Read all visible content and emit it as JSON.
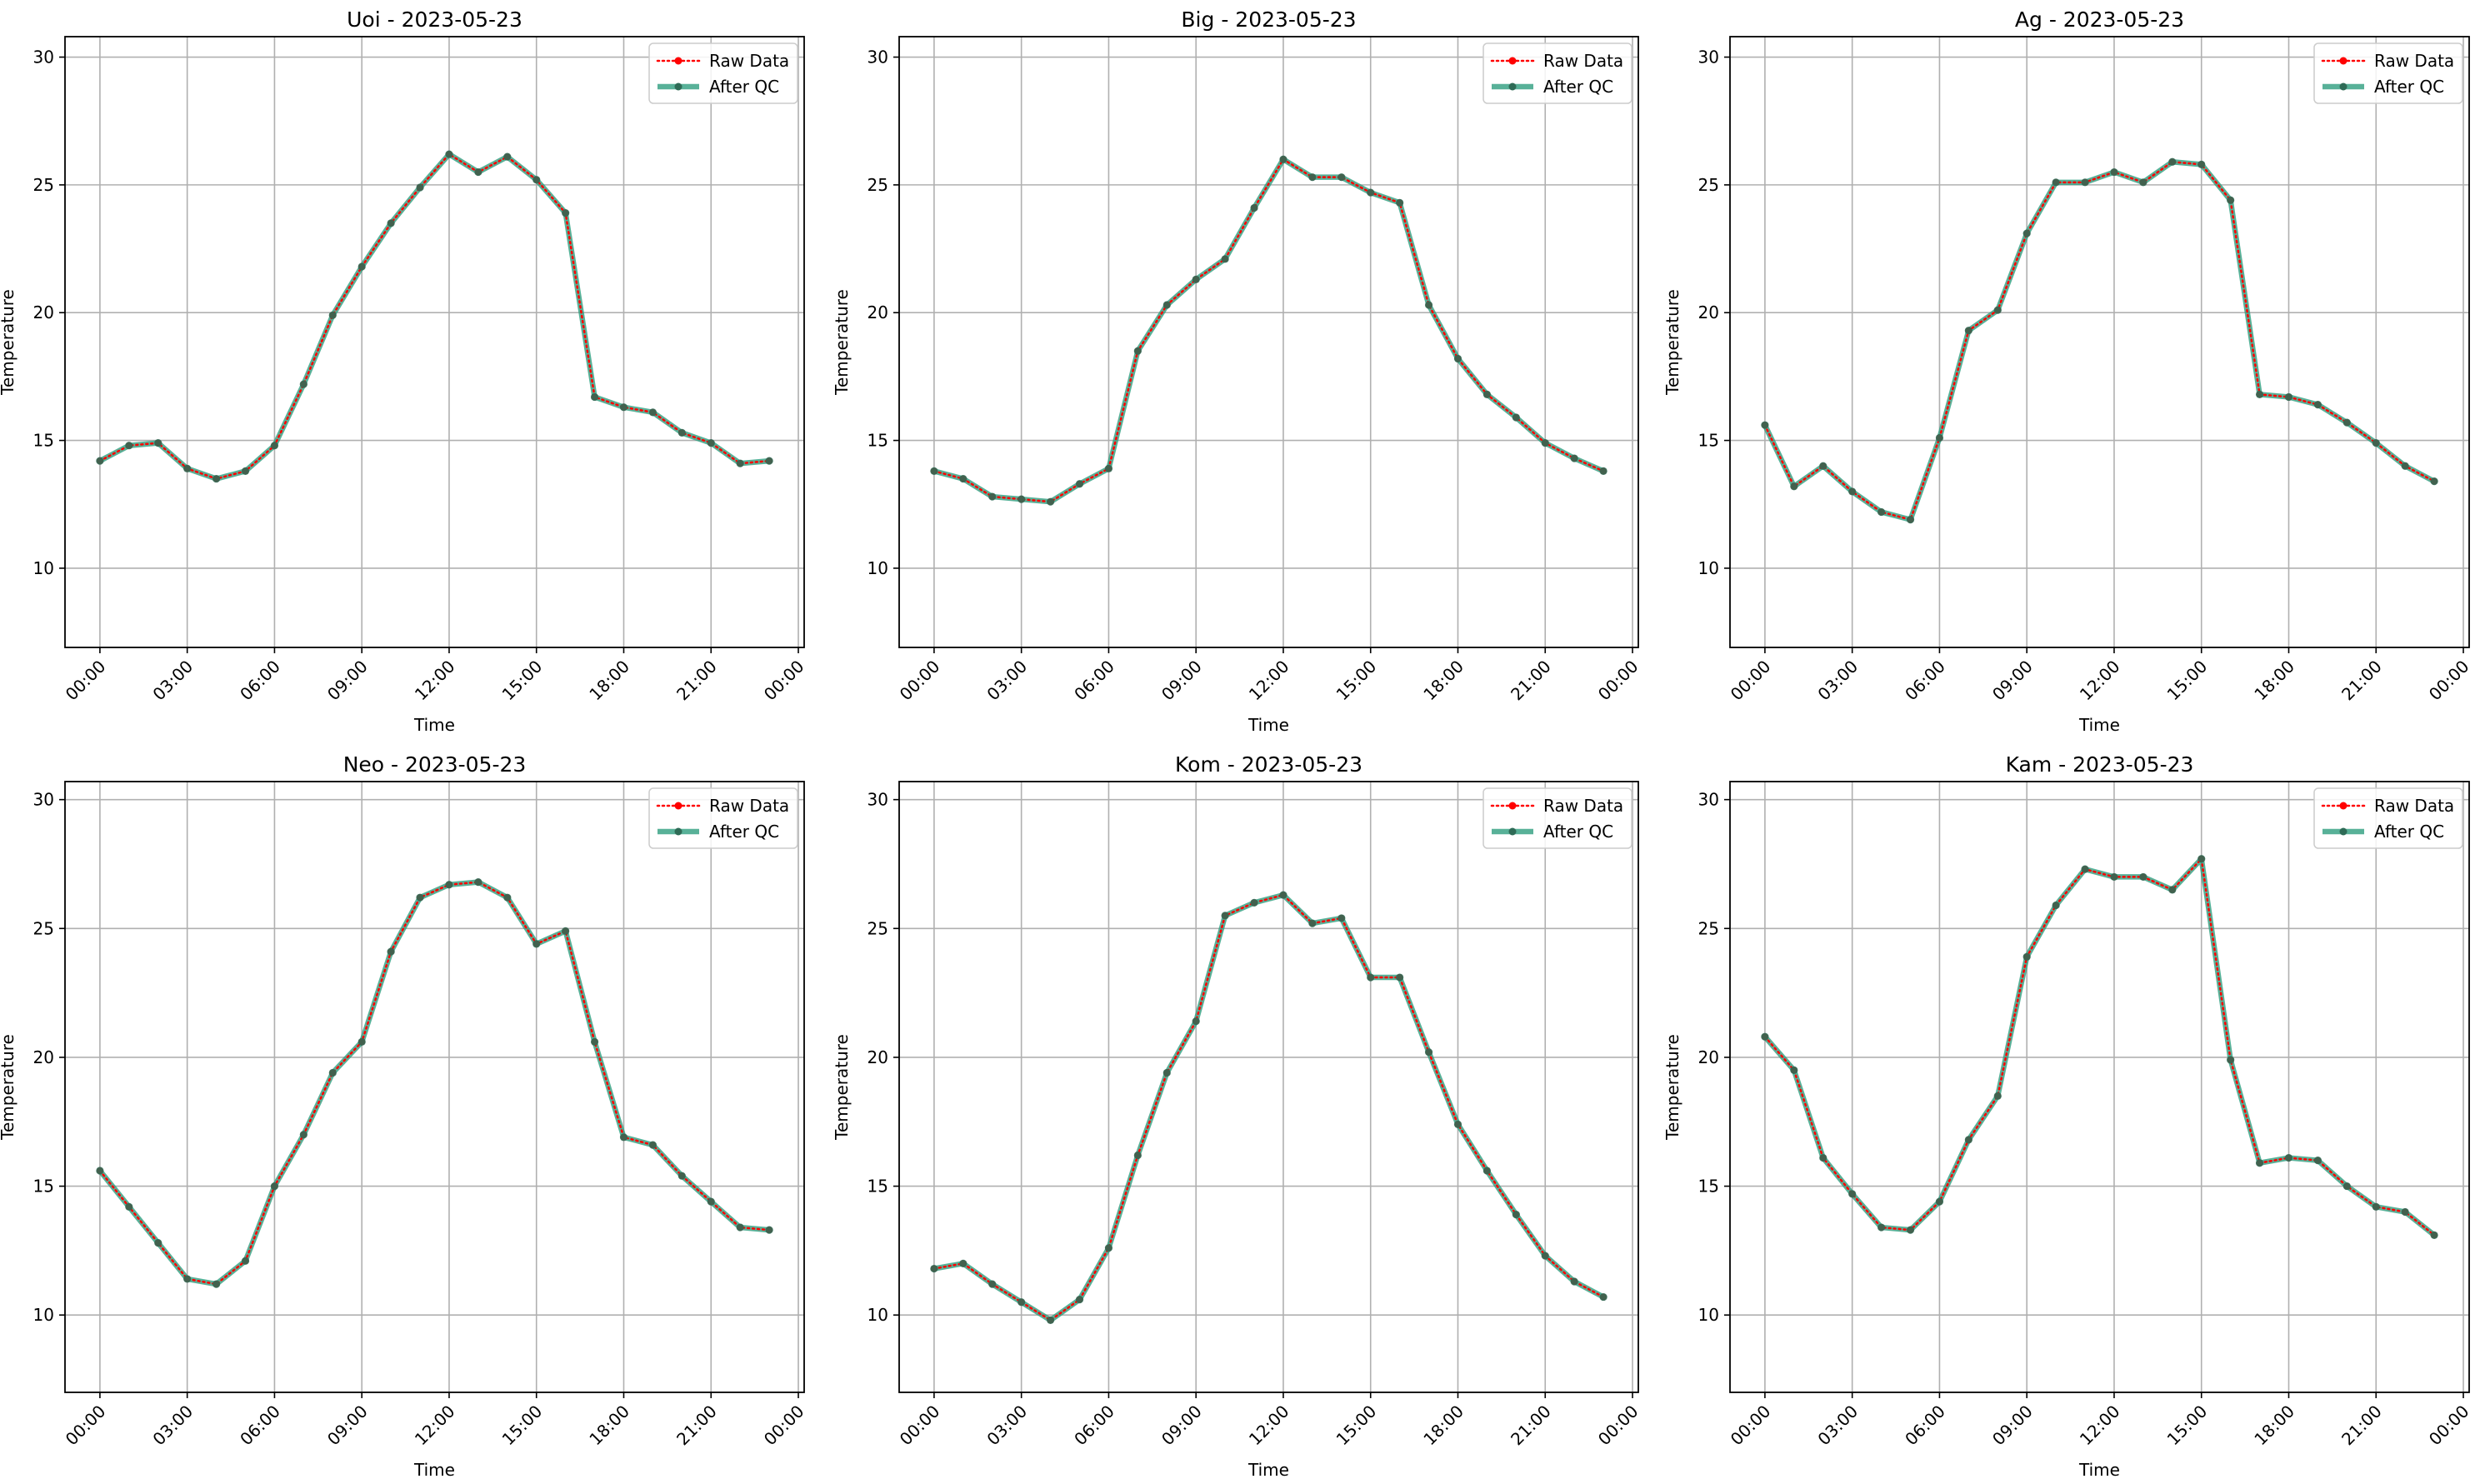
{
  "figure": {
    "facecolor": "#ffffff",
    "raw_color": "#ff0000",
    "qc_color": "#2e9e7e",
    "qc_marker_color": "#2e6b56",
    "grid_color": "#b0b0b0"
  },
  "chart_data": [
    {
      "type": "line",
      "title": "Uoi - 2023-05-23",
      "xlabel": "Time",
      "ylabel": "Temperature",
      "x_ticks": [
        "00:00",
        "03:00",
        "06:00",
        "09:00",
        "12:00",
        "15:00",
        "18:00",
        "21:00",
        "00:00"
      ],
      "y_ticks": [
        10,
        15,
        20,
        25,
        30
      ],
      "xlim_hours": [
        -1.2,
        24.2
      ],
      "ylim": [
        6.9,
        30.8
      ],
      "grid": true,
      "legend_position": "top-right",
      "x_hours": [
        0,
        1,
        2,
        3,
        4,
        5,
        6,
        7,
        8,
        9,
        10,
        11,
        12,
        13,
        14,
        15,
        16,
        17,
        18,
        19,
        20,
        21,
        22,
        23
      ],
      "series": [
        {
          "name": "Raw Data",
          "values": [
            14.2,
            14.8,
            14.9,
            13.9,
            13.5,
            13.8,
            14.8,
            17.2,
            19.9,
            21.8,
            23.5,
            24.9,
            26.2,
            25.5,
            26.1,
            25.2,
            23.9,
            16.7,
            16.3,
            16.1,
            15.3,
            14.9,
            14.1,
            14.2
          ]
        },
        {
          "name": "After QC",
          "values": [
            14.2,
            14.8,
            14.9,
            13.9,
            13.5,
            13.8,
            14.8,
            17.2,
            19.9,
            21.8,
            23.5,
            24.9,
            26.2,
            25.5,
            26.1,
            25.2,
            23.9,
            16.7,
            16.3,
            16.1,
            15.3,
            14.9,
            14.1,
            14.2
          ]
        }
      ]
    },
    {
      "type": "line",
      "title": "Big - 2023-05-23",
      "xlabel": "Time",
      "ylabel": "Temperature",
      "x_ticks": [
        "00:00",
        "03:00",
        "06:00",
        "09:00",
        "12:00",
        "15:00",
        "18:00",
        "21:00",
        "00:00"
      ],
      "y_ticks": [
        10,
        15,
        20,
        25,
        30
      ],
      "xlim_hours": [
        -1.2,
        24.2
      ],
      "ylim": [
        6.9,
        30.8
      ],
      "grid": true,
      "legend_position": "top-right",
      "x_hours": [
        0,
        1,
        2,
        3,
        4,
        5,
        6,
        7,
        8,
        9,
        10,
        11,
        12,
        13,
        14,
        15,
        16,
        17,
        18,
        19,
        20,
        21,
        22,
        23
      ],
      "series": [
        {
          "name": "Raw Data",
          "values": [
            13.8,
            13.5,
            12.8,
            12.7,
            12.6,
            13.3,
            13.9,
            18.5,
            20.3,
            21.3,
            22.1,
            24.1,
            26.0,
            25.3,
            25.3,
            24.7,
            24.3,
            20.3,
            18.2,
            16.8,
            15.9,
            14.9,
            14.3,
            13.8
          ]
        },
        {
          "name": "After QC",
          "values": [
            13.8,
            13.5,
            12.8,
            12.7,
            12.6,
            13.3,
            13.9,
            18.5,
            20.3,
            21.3,
            22.1,
            24.1,
            26.0,
            25.3,
            25.3,
            24.7,
            24.3,
            20.3,
            18.2,
            16.8,
            15.9,
            14.9,
            14.3,
            13.8
          ]
        }
      ]
    },
    {
      "type": "line",
      "title": "Ag - 2023-05-23",
      "xlabel": "Time",
      "ylabel": "Temperature",
      "x_ticks": [
        "00:00",
        "03:00",
        "06:00",
        "09:00",
        "12:00",
        "15:00",
        "18:00",
        "21:00",
        "00:00"
      ],
      "y_ticks": [
        10,
        15,
        20,
        25,
        30
      ],
      "xlim_hours": [
        -1.2,
        24.2
      ],
      "ylim": [
        6.9,
        30.8
      ],
      "grid": true,
      "legend_position": "top-right",
      "x_hours": [
        0,
        1,
        2,
        3,
        4,
        5,
        6,
        7,
        8,
        9,
        10,
        11,
        12,
        13,
        14,
        15,
        16,
        17,
        18,
        19,
        20,
        21,
        22,
        23
      ],
      "series": [
        {
          "name": "Raw Data",
          "values": [
            15.6,
            13.2,
            14.0,
            13.0,
            12.2,
            11.9,
            15.1,
            19.3,
            20.1,
            23.1,
            25.1,
            25.1,
            25.5,
            25.1,
            25.9,
            25.8,
            24.4,
            16.8,
            16.7,
            16.4,
            15.7,
            14.9,
            14.0,
            13.4
          ]
        },
        {
          "name": "After QC",
          "values": [
            15.6,
            13.2,
            14.0,
            13.0,
            12.2,
            11.9,
            15.1,
            19.3,
            20.1,
            23.1,
            25.1,
            25.1,
            25.5,
            25.1,
            25.9,
            25.8,
            24.4,
            16.8,
            16.7,
            16.4,
            15.7,
            14.9,
            14.0,
            13.4
          ]
        }
      ]
    },
    {
      "type": "line",
      "title": "Neo - 2023-05-23",
      "xlabel": "Time",
      "ylabel": "Temperature",
      "x_ticks": [
        "00:00",
        "03:00",
        "06:00",
        "09:00",
        "12:00",
        "15:00",
        "18:00",
        "21:00",
        "00:00"
      ],
      "y_ticks": [
        10,
        15,
        20,
        25,
        30
      ],
      "xlim_hours": [
        -1.2,
        24.2
      ],
      "ylim": [
        7.0,
        30.7
      ],
      "grid": true,
      "legend_position": "top-right",
      "x_hours": [
        0,
        1,
        2,
        3,
        4,
        5,
        6,
        7,
        8,
        9,
        10,
        11,
        12,
        13,
        14,
        15,
        16,
        17,
        18,
        19,
        20,
        21,
        22,
        23
      ],
      "series": [
        {
          "name": "Raw Data",
          "values": [
            15.6,
            14.2,
            12.8,
            11.4,
            11.2,
            12.1,
            15.0,
            17.0,
            19.4,
            20.6,
            24.1,
            26.2,
            26.7,
            26.8,
            26.2,
            24.4,
            24.9,
            20.6,
            16.9,
            16.6,
            15.4,
            14.4,
            13.4,
            13.3
          ]
        },
        {
          "name": "After QC",
          "values": [
            15.6,
            14.2,
            12.8,
            11.4,
            11.2,
            12.1,
            15.0,
            17.0,
            19.4,
            20.6,
            24.1,
            26.2,
            26.7,
            26.8,
            26.2,
            24.4,
            24.9,
            20.6,
            16.9,
            16.6,
            15.4,
            14.4,
            13.4,
            13.3
          ]
        }
      ]
    },
    {
      "type": "line",
      "title": "Kom - 2023-05-23",
      "xlabel": "Time",
      "ylabel": "Temperature",
      "x_ticks": [
        "00:00",
        "03:00",
        "06:00",
        "09:00",
        "12:00",
        "15:00",
        "18:00",
        "21:00",
        "00:00"
      ],
      "y_ticks": [
        10,
        15,
        20,
        25,
        30
      ],
      "xlim_hours": [
        -1.2,
        24.2
      ],
      "ylim": [
        7.0,
        30.7
      ],
      "grid": true,
      "legend_position": "top-right",
      "x_hours": [
        0,
        1,
        2,
        3,
        4,
        5,
        6,
        7,
        8,
        9,
        10,
        11,
        12,
        13,
        14,
        15,
        16,
        17,
        18,
        19,
        20,
        21,
        22,
        23
      ],
      "series": [
        {
          "name": "Raw Data",
          "values": [
            11.8,
            12.0,
            11.2,
            10.5,
            9.8,
            10.6,
            12.6,
            16.2,
            19.4,
            21.4,
            25.5,
            26.0,
            26.3,
            25.2,
            25.4,
            23.1,
            23.1,
            20.2,
            17.4,
            15.6,
            13.9,
            12.3,
            11.3,
            10.7
          ]
        },
        {
          "name": "After QC",
          "values": [
            11.8,
            12.0,
            11.2,
            10.5,
            9.8,
            10.6,
            12.6,
            16.2,
            19.4,
            21.4,
            25.5,
            26.0,
            26.3,
            25.2,
            25.4,
            23.1,
            23.1,
            20.2,
            17.4,
            15.6,
            13.9,
            12.3,
            11.3,
            10.7
          ]
        }
      ]
    },
    {
      "type": "line",
      "title": "Kam - 2023-05-23",
      "xlabel": "Time",
      "ylabel": "Temperature",
      "x_ticks": [
        "00:00",
        "03:00",
        "06:00",
        "09:00",
        "12:00",
        "15:00",
        "18:00",
        "21:00",
        "00:00"
      ],
      "y_ticks": [
        10,
        15,
        20,
        25,
        30
      ],
      "xlim_hours": [
        -1.2,
        24.2
      ],
      "ylim": [
        7.0,
        30.7
      ],
      "grid": true,
      "legend_position": "top-right",
      "x_hours": [
        0,
        1,
        2,
        3,
        4,
        5,
        6,
        7,
        8,
        9,
        10,
        11,
        12,
        13,
        14,
        15,
        16,
        17,
        18,
        19,
        20,
        21,
        22,
        23
      ],
      "series": [
        {
          "name": "Raw Data",
          "values": [
            20.8,
            19.5,
            16.1,
            14.7,
            13.4,
            13.3,
            14.4,
            16.8,
            18.5,
            23.9,
            25.9,
            27.3,
            27.0,
            27.0,
            26.5,
            27.7,
            19.9,
            15.9,
            16.1,
            16.0,
            15.0,
            14.2,
            14.0,
            13.1
          ]
        },
        {
          "name": "After QC",
          "values": [
            20.8,
            19.5,
            16.1,
            14.7,
            13.4,
            13.3,
            14.4,
            16.8,
            18.5,
            23.9,
            25.9,
            27.3,
            27.0,
            27.0,
            26.5,
            27.7,
            19.9,
            15.9,
            16.1,
            16.0,
            15.0,
            14.2,
            14.0,
            13.1
          ]
        }
      ]
    }
  ]
}
